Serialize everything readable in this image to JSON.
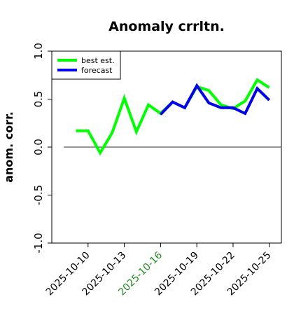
{
  "chart_data": {
    "type": "line",
    "title": "Anomaly crrltn.",
    "xlabel": "",
    "ylabel": "anom. corr.",
    "ylim": [
      -1.0,
      1.0
    ],
    "y_ticks": [
      {
        "value": -1.0,
        "label": "-1.0"
      },
      {
        "value": -0.5,
        "label": "-0.5"
      },
      {
        "value": 0.0,
        "label": "0.0"
      },
      {
        "value": 0.5,
        "label": "0.5"
      },
      {
        "value": 1.0,
        "label": "1.0"
      }
    ],
    "x_ticks": [
      {
        "date": "2025-10-10",
        "label": "2025-10-10",
        "color": "#000000"
      },
      {
        "date": "2025-10-13",
        "label": "2025-10-13",
        "color": "#000000"
      },
      {
        "date": "2025-10-16",
        "label": "2025-10-16",
        "color": "#228B22"
      },
      {
        "date": "2025-10-19",
        "label": "2025-10-19",
        "color": "#000000"
      },
      {
        "date": "2025-10-22",
        "label": "2025-10-22",
        "color": "#000000"
      },
      {
        "date": "2025-10-25",
        "label": "2025-10-25",
        "color": "#000000"
      }
    ],
    "xlim": [
      "2025-10-07",
      "2025-10-26"
    ],
    "reference_line": {
      "y": 0.0,
      "from": "2025-10-08",
      "to": "2025-10-26",
      "color": "#555555"
    },
    "legend": {
      "position": "top-left"
    },
    "grid": false,
    "series": [
      {
        "name": "best est.",
        "color": "#00ff00",
        "points": [
          {
            "x": "2025-10-09",
            "y": 0.17
          },
          {
            "x": "2025-10-10",
            "y": 0.17
          },
          {
            "x": "2025-10-11",
            "y": -0.06
          },
          {
            "x": "2025-10-12",
            "y": 0.15
          },
          {
            "x": "2025-10-13",
            "y": 0.51
          },
          {
            "x": "2025-10-14",
            "y": 0.16
          },
          {
            "x": "2025-10-15",
            "y": 0.44
          },
          {
            "x": "2025-10-16",
            "y": 0.35
          },
          {
            "x": "2025-10-17",
            "y": 0.47
          },
          {
            "x": "2025-10-18",
            "y": 0.41
          },
          {
            "x": "2025-10-19",
            "y": 0.63
          },
          {
            "x": "2025-10-20",
            "y": 0.59
          },
          {
            "x": "2025-10-21",
            "y": 0.44
          },
          {
            "x": "2025-10-22",
            "y": 0.4
          },
          {
            "x": "2025-10-23",
            "y": 0.48
          },
          {
            "x": "2025-10-24",
            "y": 0.7
          },
          {
            "x": "2025-10-25",
            "y": 0.62
          }
        ]
      },
      {
        "name": "forecast",
        "color": "#0000ee",
        "points": [
          {
            "x": "2025-10-16",
            "y": 0.34
          },
          {
            "x": "2025-10-17",
            "y": 0.47
          },
          {
            "x": "2025-10-18",
            "y": 0.41
          },
          {
            "x": "2025-10-19",
            "y": 0.64
          },
          {
            "x": "2025-10-20",
            "y": 0.46
          },
          {
            "x": "2025-10-21",
            "y": 0.41
          },
          {
            "x": "2025-10-22",
            "y": 0.41
          },
          {
            "x": "2025-10-23",
            "y": 0.35
          },
          {
            "x": "2025-10-24",
            "y": 0.61
          },
          {
            "x": "2025-10-25",
            "y": 0.49
          }
        ]
      }
    ]
  }
}
